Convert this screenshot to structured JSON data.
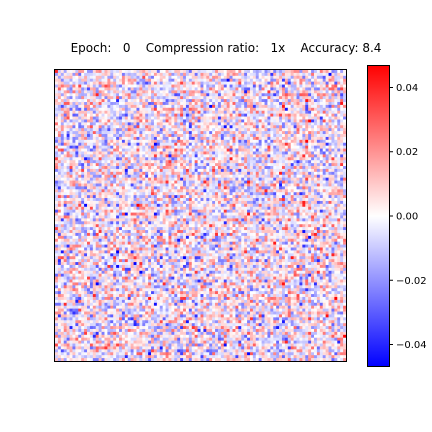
{
  "chart_data": {
    "type": "heatmap",
    "title": "Epoch:   0    Compression ratio:   1x    Accuracy: 8.4",
    "title_parts": {
      "epoch_label": "Epoch:",
      "epoch_value": "0",
      "compression_label": "Compression ratio:",
      "compression_value": "1x",
      "accuracy_label": "Accuracy:",
      "accuracy_value": "8.4"
    },
    "xlabel": "",
    "ylabel": "",
    "grid": false,
    "colormap": "bwr",
    "colormap_colors": {
      "low": "#0000ff",
      "mid": "#ffffff",
      "high": "#ff0000"
    },
    "value_range": [
      -0.047,
      0.047
    ],
    "matrix_shape": [
      100,
      100
    ],
    "matrix_distribution": "random, approximately zero-mean",
    "colorbar": {
      "placement": "right",
      "ticks": [
        {
          "value": 0.04,
          "label": "0.04"
        },
        {
          "value": 0.02,
          "label": "0.02"
        },
        {
          "value": 0.0,
          "label": "0.00"
        },
        {
          "value": -0.02,
          "label": "−0.02"
        },
        {
          "value": -0.04,
          "label": "−0.04"
        }
      ]
    }
  }
}
